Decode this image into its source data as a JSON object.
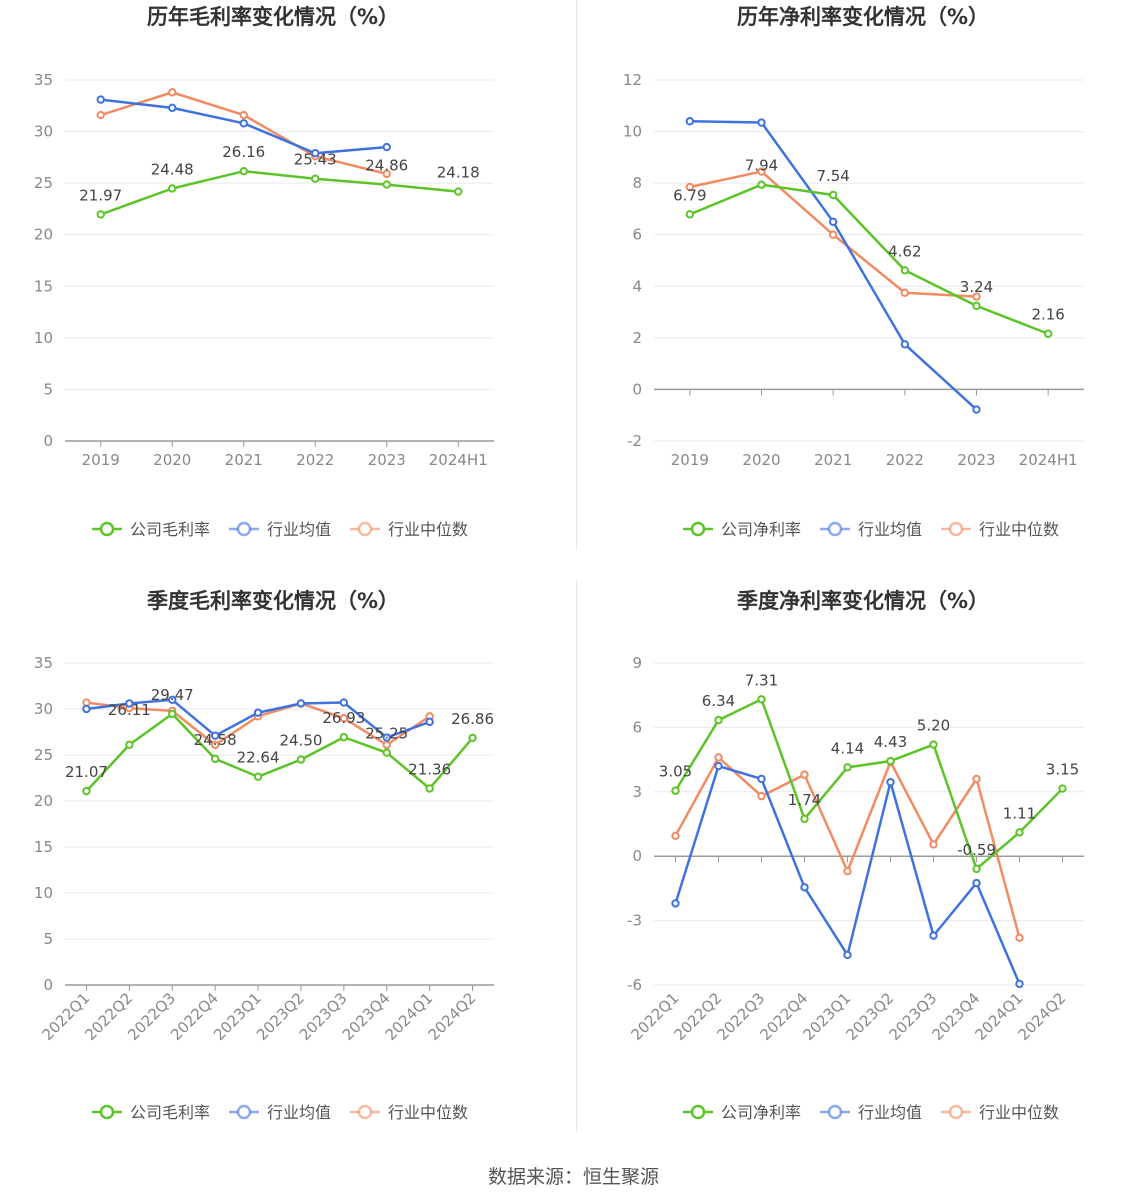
{
  "source": "数据来源：恒生聚源",
  "colors": {
    "company": "#5cc428",
    "avg": "#3f72df",
    "median": "#f28b62"
  },
  "chart_data": [
    {
      "type": "line",
      "title": "历年毛利率变化情况（%）",
      "categories": [
        "2019",
        "2020",
        "2021",
        "2022",
        "2023",
        "2024H1"
      ],
      "ylim": [
        0,
        35
      ],
      "yticks": [
        0,
        5,
        10,
        15,
        20,
        25,
        30,
        35
      ],
      "series": [
        {
          "name": "公司毛利率",
          "key": "company",
          "values": [
            21.97,
            24.48,
            26.16,
            25.43,
            24.86,
            24.18
          ],
          "labels": [
            "21.97",
            "24.48",
            "26.16",
            "25.43",
            "24.86",
            "24.18"
          ]
        },
        {
          "name": "行业均值",
          "key": "avg",
          "values": [
            33.1,
            32.3,
            30.8,
            27.9,
            28.5,
            null
          ]
        },
        {
          "name": "行业中位数",
          "key": "median",
          "values": [
            31.6,
            33.8,
            31.6,
            27.6,
            25.9,
            null
          ]
        }
      ]
    },
    {
      "type": "line",
      "title": "历年净利率变化情况（%）",
      "categories": [
        "2019",
        "2020",
        "2021",
        "2022",
        "2023",
        "2024H1"
      ],
      "ylim": [
        -2,
        12
      ],
      "yticks": [
        -2,
        0,
        2,
        4,
        6,
        8,
        10,
        12
      ],
      "series": [
        {
          "name": "公司净利率",
          "key": "company",
          "values": [
            6.79,
            7.94,
            7.54,
            4.62,
            3.24,
            2.16
          ],
          "labels": [
            "6.79",
            "7.94",
            "7.54",
            "4.62",
            "3.24",
            "2.16"
          ]
        },
        {
          "name": "行业均值",
          "key": "avg",
          "values": [
            10.4,
            10.35,
            6.5,
            1.75,
            -0.78,
            null
          ]
        },
        {
          "name": "行业中位数",
          "key": "median",
          "values": [
            7.85,
            8.45,
            6.0,
            3.75,
            3.6,
            null
          ]
        }
      ]
    },
    {
      "type": "line",
      "title": "季度毛利率变化情况（%）",
      "categories": [
        "2022Q1",
        "2022Q2",
        "2022Q3",
        "2022Q4",
        "2023Q1",
        "2023Q2",
        "2023Q3",
        "2023Q4",
        "2024Q1",
        "2024Q2"
      ],
      "ylim": [
        0,
        35
      ],
      "yticks": [
        0,
        5,
        10,
        15,
        20,
        25,
        30,
        35
      ],
      "rotate_x": true,
      "series": [
        {
          "name": "公司毛利率",
          "key": "company",
          "values": [
            21.07,
            26.11,
            29.47,
            24.58,
            22.64,
            24.5,
            26.93,
            25.25,
            21.36,
            26.86
          ],
          "labels": [
            "21.07",
            "26.11",
            "29.47",
            "24.58",
            "22.64",
            "24.50",
            "26.93",
            "25.25",
            "21.36",
            "26.86"
          ]
        },
        {
          "name": "行业均值",
          "key": "avg",
          "values": [
            30.0,
            30.6,
            31.0,
            27.1,
            29.6,
            30.6,
            30.7,
            26.9,
            28.6,
            null
          ]
        },
        {
          "name": "行业中位数",
          "key": "median",
          "values": [
            30.7,
            30.1,
            29.8,
            26.1,
            29.2,
            30.6,
            29.0,
            26.1,
            29.2,
            null
          ]
        }
      ]
    },
    {
      "type": "line",
      "title": "季度净利率变化情况（%）",
      "categories": [
        "2022Q1",
        "2022Q2",
        "2022Q3",
        "2022Q4",
        "2023Q1",
        "2023Q2",
        "2023Q3",
        "2023Q4",
        "2024Q1",
        "2024Q2"
      ],
      "ylim": [
        -6,
        9
      ],
      "yticks": [
        -6,
        -3,
        0,
        3,
        6,
        9
      ],
      "rotate_x": true,
      "series": [
        {
          "name": "公司净利率",
          "key": "company",
          "values": [
            3.05,
            6.34,
            7.31,
            1.74,
            4.14,
            4.43,
            5.2,
            -0.59,
            1.11,
            3.15
          ],
          "labels": [
            "3.05",
            "6.34",
            "7.31",
            "1.74",
            "4.14",
            "4.43",
            "5.20",
            "-0.59",
            "1.11",
            "3.15"
          ]
        },
        {
          "name": "行业均值",
          "key": "avg",
          "values": [
            -2.2,
            4.2,
            3.6,
            -1.45,
            -4.6,
            3.45,
            -3.7,
            -1.25,
            -5.95,
            null
          ]
        },
        {
          "name": "行业中位数",
          "key": "median",
          "values": [
            0.95,
            4.6,
            2.8,
            3.8,
            -0.7,
            4.4,
            0.55,
            3.6,
            -3.8,
            null
          ]
        }
      ]
    }
  ]
}
